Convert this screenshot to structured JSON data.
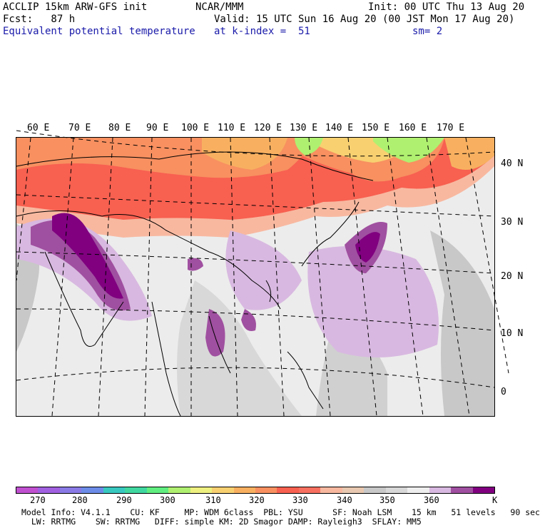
{
  "header": {
    "model": "ACCLIP 15km ARW-GFS init",
    "org": "NCAR/MMM",
    "init": "Init: 00 UTC Thu 13 Aug 20",
    "fcst": "Fcst:   87 h",
    "valid": "Valid: 15 UTC Sun 16 Aug 20 (00 JST Mon 17 Aug 20)",
    "field": "Equivalent potential temperature",
    "level": "at k-index =  51",
    "smooth": "sm= 2"
  },
  "map": {
    "lon_labels": [
      "60 E",
      "70 E",
      "80 E",
      "90 E",
      "100 E",
      "110 E",
      "120 E",
      "130 E",
      "140 E",
      "150 E",
      "160 E",
      "170 E"
    ],
    "lat_labels": [
      "40 N",
      "30 N",
      "20 N",
      "10 N",
      "0"
    ]
  },
  "colorbar": {
    "colors": [
      "#c050d0",
      "#a060e0",
      "#8a7ae6",
      "#6c8ce8",
      "#38c8c0",
      "#40d8a0",
      "#60ee80",
      "#b0f070",
      "#eef080",
      "#f8d070",
      "#f8b060",
      "#f89060",
      "#f86050",
      "#f87060",
      "#f8b8a0",
      "#e8c8b0",
      "#c8c8c8",
      "#d8d8d8",
      "#eeeeee",
      "#d8b8e0",
      "#a050a0",
      "#800080"
    ],
    "tick_labels": [
      "270",
      "280",
      "290",
      "300",
      "310",
      "320",
      "330",
      "340",
      "350",
      "360"
    ],
    "unit": "K"
  },
  "footer": {
    "line1": "Model Info: V4.1.1    CU: KF     MP: WDM 6class  PBL: YSU      SF: Noah LSM    15 km   51 levels   90 sec",
    "line2": "  LW: RRTMG    SW: RRTMG   DIFF: simple KM: 2D Smagor DAMP: Rayleigh3  SFLAY: MM5"
  }
}
